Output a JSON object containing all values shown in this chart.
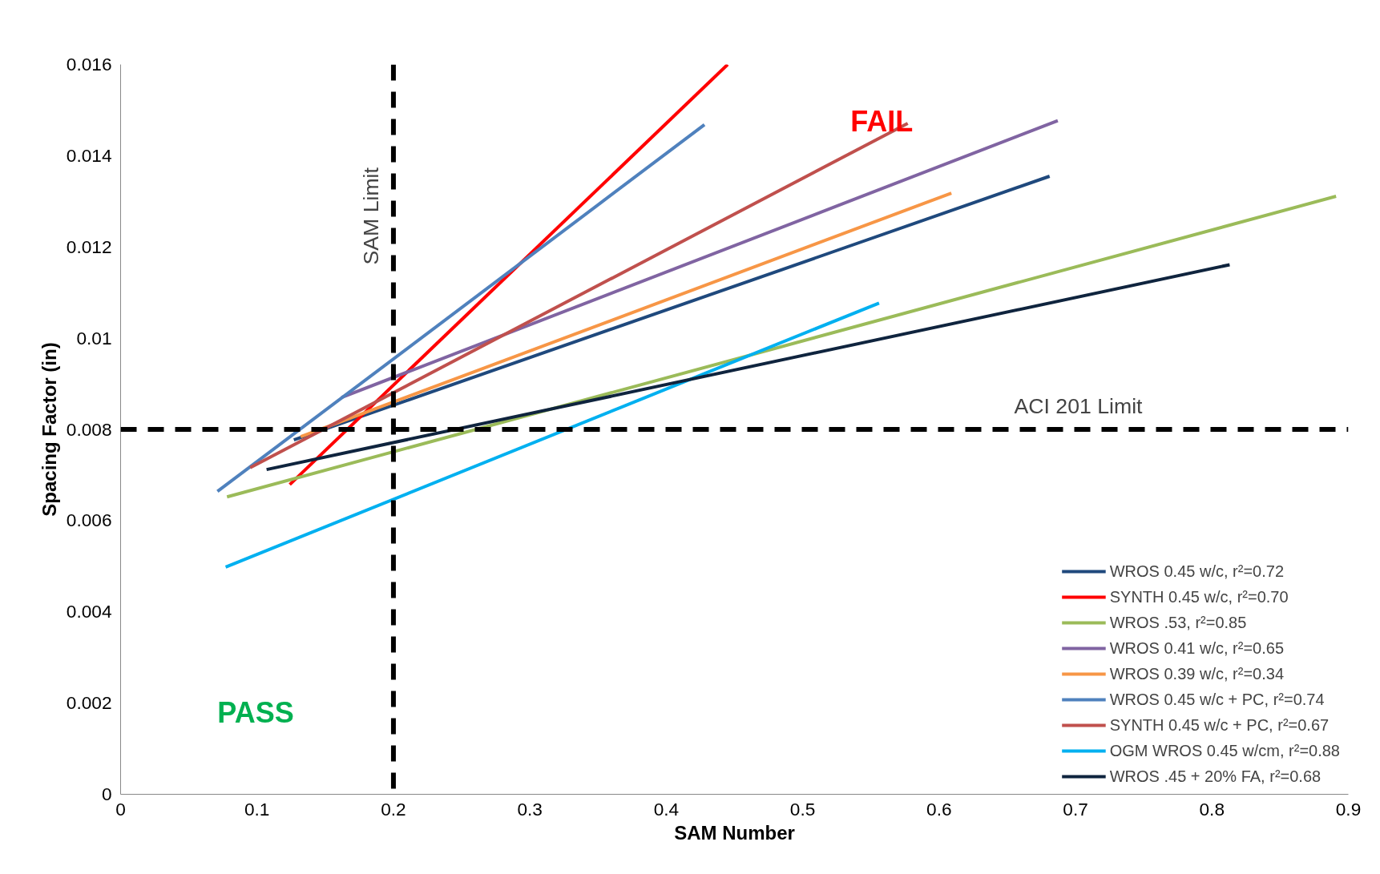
{
  "chart_data": {
    "type": "line",
    "xlabel": "SAM Number",
    "ylabel": "Spacing Factor (in)",
    "xlim": [
      0,
      0.9
    ],
    "xticks": [
      0,
      0.1,
      0.2,
      0.3,
      0.4,
      0.5,
      0.6,
      0.7,
      0.8,
      0.9
    ],
    "ylim": [
      0,
      0.016
    ],
    "yticks": [
      0,
      0.002,
      0.004,
      0.006,
      0.008,
      0.01,
      0.012,
      0.014,
      0.016
    ],
    "grid": false,
    "legend": "bottom right",
    "line_style": "solid",
    "marker": "none",
    "series": [
      {
        "name": "WROS 0.45 w/c, r²=0.72",
        "color": "#1f497d",
        "x": [
          0.127,
          0.681
        ],
        "values": [
          0.00777,
          0.01355
        ]
      },
      {
        "name": "SYNTH 0.45 w/c, r²=0.70",
        "color": "#ff0000",
        "x": [
          0.124,
          0.445
        ],
        "values": [
          0.00679,
          0.016
        ]
      },
      {
        "name": "WROS .53, r²=0.85",
        "color": "#9bbb59",
        "x": [
          0.078,
          0.891
        ],
        "values": [
          0.00652,
          0.01311
        ]
      },
      {
        "name": "WROS 0.41 w/c, r²=0.65",
        "color": "#8064a2",
        "x": [
          0.162,
          0.687
        ],
        "values": [
          0.0087,
          0.01477
        ]
      },
      {
        "name": "WROS 0.39 w/c, r²=0.34",
        "color": "#f79646",
        "x": [
          0.132,
          0.609
        ],
        "values": [
          0.00784,
          0.01318
        ]
      },
      {
        "name": "WROS 0.45 w/c + PC, r²=0.74",
        "color": "#4f81bd",
        "x": [
          0.071,
          0.428
        ],
        "values": [
          0.00664,
          0.01468
        ]
      },
      {
        "name": "SYNTH 0.45 w/c + PC, r²=0.67",
        "color": "#c0504d",
        "x": [
          0.095,
          0.577
        ],
        "values": [
          0.00716,
          0.01471
        ]
      },
      {
        "name": "OGM WROS 0.45 w/cm, r²=0.88",
        "color": "#00b0f0",
        "x": [
          0.077,
          0.556
        ],
        "values": [
          0.00498,
          0.01077
        ]
      },
      {
        "name": "WROS .45 + 20% FA, r²=0.68",
        "color": "#0f243e",
        "x": [
          0.107,
          0.813
        ],
        "values": [
          0.00712,
          0.01161
        ]
      }
    ],
    "ref_lines": [
      {
        "axis": "x",
        "value": 0.2,
        "label": "SAM Limit",
        "color": "#000000",
        "line_style": "dashed"
      },
      {
        "axis": "y",
        "value": 0.008,
        "label": "ACI 201 Limit",
        "color": "#000000",
        "line_style": "dashed"
      }
    ],
    "annotations": [
      "FAIL",
      "PASS"
    ]
  }
}
